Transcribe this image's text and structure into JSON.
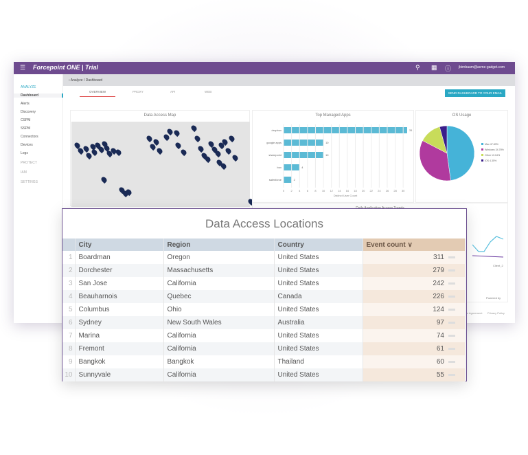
{
  "app": {
    "logo": "Forcepoint ONE | Trial",
    "user": "jbirnbaum@acme-gadget.com",
    "breadcrumb": "Analyze / Dashboard"
  },
  "sidebar": {
    "section_analyze": "ANALYZE",
    "items": [
      "Dashboard",
      "Alerts",
      "Discovery",
      "CSPM",
      "SSPM",
      "Connectors",
      "Devices",
      "Logs"
    ],
    "section_protect": "PROTECT",
    "section_iam": "IAM",
    "section_settings": "SETTINGS"
  },
  "tabs": [
    "OVERVIEW",
    "PROXY",
    "API",
    "WEB"
  ],
  "send_button": "SEND DASHBOARD TO YOUR EMAIL",
  "panels": {
    "map_title": "Data Access Map",
    "trend_title": "Daily Application Access Trends",
    "trend_legend": "Client_2",
    "powered_by": "Powered by",
    "footer": [
      "Subscription Agreement",
      "Privacy Policy"
    ]
  },
  "chart_data": [
    {
      "type": "bar",
      "title": "Top Managed Apps",
      "xlabel": "Distinct User Count",
      "categories": [
        "dropbox",
        "google apps",
        "sharepoint",
        "box",
        "salesforce"
      ],
      "values": [
        31,
        10,
        10,
        4,
        2
      ],
      "xlim": [
        0,
        30
      ]
    },
    {
      "type": "pie",
      "title": "OS Usage",
      "labels": [
        "Mac 47.83%",
        "Windows 34.78%",
        "Other 13.04%",
        "iOS 4.35%"
      ],
      "values": [
        47.83,
        34.78,
        13.04,
        4.35
      ],
      "colors": [
        "#45b3d8",
        "#b03a9e",
        "#c8dc5a",
        "#3a1e8a"
      ]
    }
  ],
  "table": {
    "title": "Data Access Locations",
    "headers": [
      "City",
      "Region",
      "Country",
      "Event count ∨"
    ],
    "rows": [
      [
        "1",
        "Boardman",
        "Oregon",
        "United States",
        "311"
      ],
      [
        "2",
        "Dorchester",
        "Massachusetts",
        "United States",
        "279"
      ],
      [
        "3",
        "San Jose",
        "California",
        "United States",
        "242"
      ],
      [
        "4",
        "Beauharnois",
        "Quebec",
        "Canada",
        "226"
      ],
      [
        "5",
        "Columbus",
        "Ohio",
        "United States",
        "124"
      ],
      [
        "6",
        "Sydney",
        "New South Wales",
        "Australia",
        "97"
      ],
      [
        "7",
        "Marina",
        "California",
        "United States",
        "74"
      ],
      [
        "8",
        "Fremont",
        "California",
        "United States",
        "61"
      ],
      [
        "9",
        "Bangkok",
        "Bangkok",
        "Thailand",
        "60"
      ],
      [
        "10",
        "Sunnyvale",
        "California",
        "United States",
        "55"
      ]
    ]
  }
}
